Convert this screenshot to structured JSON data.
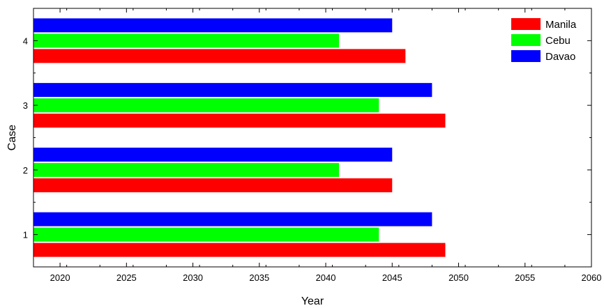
{
  "chart_data": {
    "type": "bar",
    "orientation": "horizontal",
    "categories": [
      "1",
      "2",
      "3",
      "4"
    ],
    "series": [
      {
        "name": "Manila",
        "color": "#ff0000",
        "values": [
          2049,
          2045,
          2049,
          2046
        ]
      },
      {
        "name": "Cebu",
        "color": "#00ff00",
        "values": [
          2044,
          2041,
          2044,
          2041
        ]
      },
      {
        "name": "Davao",
        "color": "#0000ff",
        "values": [
          2048,
          2045,
          2048,
          2045
        ]
      }
    ],
    "xlabel": "Year",
    "ylabel": "Case",
    "xlim": [
      2018,
      2060
    ],
    "xticks": [
      2020,
      2025,
      2030,
      2035,
      2040,
      2045,
      2050,
      2055,
      2060
    ],
    "bar_base": 2018,
    "legend": "top-right",
    "grid": false
  }
}
